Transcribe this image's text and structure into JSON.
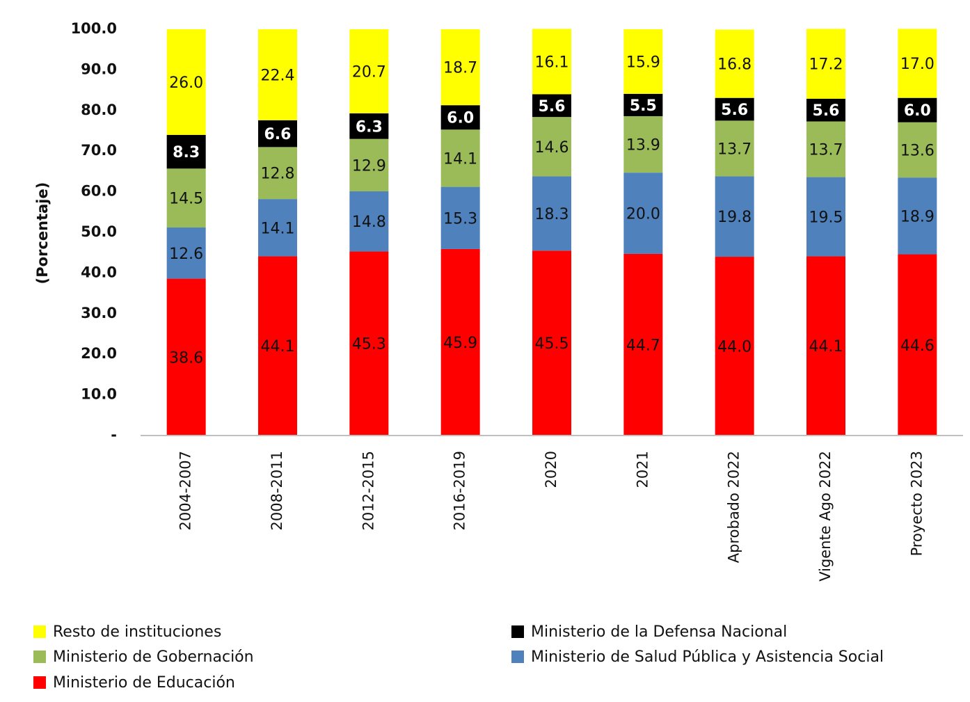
{
  "chart_data": {
    "type": "stacked_bar",
    "y_label": "(Porcentaje)",
    "categories": [
      "2004-2007",
      "2008-2011",
      "2012-2015",
      "2016-2019",
      "2020",
      "2021",
      "Aprobado 2022",
      "Vigente Ago 2022",
      "Proyecto 2023"
    ],
    "series": [
      {
        "name": "Ministerio de Educación",
        "color": "#ff0000",
        "values": [
          38.6,
          44.1,
          45.3,
          45.9,
          45.5,
          44.7,
          44.0,
          44.1,
          44.6
        ],
        "value_labels": [
          "38.6",
          "44.1",
          "45.3",
          "45.9",
          "45.5",
          "44.7",
          "44.0",
          "44.1",
          "44.6"
        ]
      },
      {
        "name": "Ministerio de Salud Pública y Asistencia Social",
        "color": "#4f81bd",
        "values": [
          12.6,
          14.1,
          14.8,
          15.3,
          18.3,
          20.0,
          19.8,
          19.5,
          18.9
        ],
        "value_labels": [
          "12.6",
          "14.1",
          "14.8",
          "15.3",
          "18.3",
          "20.0",
          "19.8",
          "19.5",
          "18.9"
        ]
      },
      {
        "name": "Ministerio de Gobernación",
        "color": "#9bbb59",
        "values": [
          14.5,
          12.8,
          12.9,
          14.1,
          14.6,
          13.9,
          13.7,
          13.7,
          13.6
        ],
        "value_labels": [
          "14.5",
          "12.8",
          "12.9",
          "14.1",
          "14.6",
          "13.9",
          "13.7",
          "13.7",
          "13.6"
        ]
      },
      {
        "name": "Ministerio de la Defensa Nacional",
        "color": "#000000",
        "values": [
          8.3,
          6.6,
          6.3,
          6.0,
          5.6,
          5.5,
          5.6,
          5.6,
          6.0
        ],
        "value_labels": [
          "8.3",
          "6.6",
          "6.3",
          "6.0",
          "5.6",
          "5.5",
          "5.6",
          "5.6",
          "6.0"
        ]
      },
      {
        "name": "Resto de instituciones",
        "color": "#ffff00",
        "values": [
          26.0,
          22.4,
          20.7,
          18.7,
          16.1,
          15.9,
          16.8,
          17.2,
          17.0
        ],
        "value_labels": [
          "26.0",
          "22.4",
          "20.7",
          "18.7",
          "16.1",
          "15.9",
          "16.8",
          "17.2",
          "17.0"
        ]
      }
    ],
    "ylim": [
      0,
      100
    ],
    "yticks": [
      {
        "value": 0,
        "label": "-"
      },
      {
        "value": 10,
        "label": "10.0"
      },
      {
        "value": 20,
        "label": "20.0"
      },
      {
        "value": 30,
        "label": "30.0"
      },
      {
        "value": 40,
        "label": "40.0"
      },
      {
        "value": 50,
        "label": "50.0"
      },
      {
        "value": 60,
        "label": "60.0"
      },
      {
        "value": 70,
        "label": "70.0"
      },
      {
        "value": 80,
        "label": "80.0"
      },
      {
        "value": 90,
        "label": "90.0"
      },
      {
        "value": 100,
        "label": "100.0"
      }
    ],
    "grid": false
  }
}
